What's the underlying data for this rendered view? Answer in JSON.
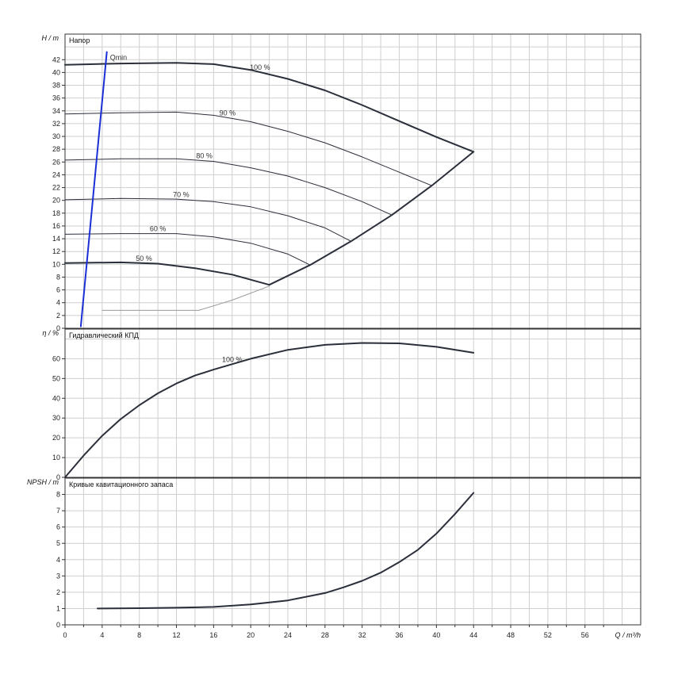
{
  "chart_data": [
    {
      "type": "line",
      "title": "Напор",
      "ylabel": "H / m",
      "xlim": [
        0,
        62
      ],
      "ylim": [
        0,
        46
      ],
      "yticks": [
        0,
        2,
        4,
        6,
        8,
        10,
        12,
        14,
        16,
        18,
        20,
        22,
        24,
        26,
        28,
        30,
        32,
        34,
        36,
        38,
        40,
        42
      ],
      "grid": true,
      "series": [
        {
          "name": "100 %",
          "x": [
            0,
            6,
            12,
            16,
            20,
            24,
            28,
            32,
            36,
            40,
            44
          ],
          "y": [
            41.2,
            41.4,
            41.5,
            41.3,
            40.4,
            39.0,
            37.2,
            34.9,
            32.4,
            29.9,
            27.6
          ],
          "weight": "bold"
        },
        {
          "name": "90 %",
          "x": [
            0,
            6,
            12,
            16,
            20,
            24,
            28,
            32,
            36,
            39.5
          ],
          "y": [
            33.5,
            33.7,
            33.8,
            33.3,
            32.3,
            30.8,
            29.0,
            26.8,
            24.4,
            22.3
          ],
          "weight": "thin"
        },
        {
          "name": "80 %",
          "x": [
            0,
            6,
            12,
            16,
            20,
            24,
            28,
            32,
            35.2
          ],
          "y": [
            26.3,
            26.5,
            26.5,
            26.1,
            25.1,
            23.8,
            22.0,
            19.8,
            17.7
          ],
          "weight": "thin"
        },
        {
          "name": "70 %",
          "x": [
            0,
            6,
            12,
            16,
            20,
            24,
            28,
            30.8
          ],
          "y": [
            20.1,
            20.3,
            20.2,
            19.8,
            19.0,
            17.6,
            15.7,
            13.6
          ],
          "weight": "thin"
        },
        {
          "name": "60 %",
          "x": [
            0,
            6,
            12,
            16,
            20,
            24,
            26.4
          ],
          "y": [
            14.7,
            14.8,
            14.8,
            14.3,
            13.3,
            11.6,
            9.9
          ],
          "weight": "thin"
        },
        {
          "name": "50 %",
          "x": [
            0,
            6,
            10,
            14,
            18,
            22
          ],
          "y": [
            10.2,
            10.3,
            10.1,
            9.4,
            8.4,
            6.8
          ],
          "weight": "bold"
        },
        {
          "name": "",
          "x": [
            22,
            26.4,
            30.8,
            35.2,
            39.5,
            44
          ],
          "y": [
            6.8,
            9.9,
            13.6,
            17.7,
            22.3,
            27.6
          ],
          "weight": "bold"
        },
        {
          "name": "",
          "x": [
            4,
            14.4,
            18,
            22
          ],
          "y": [
            2.8,
            2.8,
            4.4,
            6.6
          ],
          "weight": "faint"
        },
        {
          "name": "Qmin",
          "x": [
            1.7,
            4.5
          ],
          "y": [
            0.3,
            43.2
          ],
          "weight": "blue"
        }
      ]
    },
    {
      "type": "line",
      "title": "Гидравлический КПД",
      "ylabel": "η / %",
      "xlim": [
        0,
        62
      ],
      "ylim": [
        0,
        75
      ],
      "yticks": [
        0,
        10,
        20,
        30,
        40,
        50,
        60
      ],
      "grid": true,
      "series": [
        {
          "name": "100 %",
          "x": [
            0,
            2,
            4,
            6,
            8,
            10,
            12,
            14,
            16,
            20,
            24,
            28,
            32,
            36,
            40,
            44
          ],
          "y": [
            0,
            11,
            21,
            29.5,
            36.5,
            42.5,
            47.5,
            51.5,
            54.5,
            60,
            64.5,
            67,
            68,
            67.8,
            66,
            63
          ],
          "weight": "bold"
        }
      ]
    },
    {
      "type": "line",
      "title": "Кривые кавитационного запаса",
      "ylabel": "NPSH / m",
      "xlabel": "Q / m³/h",
      "xlim": [
        0,
        62
      ],
      "ylim": [
        0,
        9
      ],
      "xticks": [
        0,
        4,
        8,
        12,
        16,
        20,
        24,
        28,
        32,
        36,
        40,
        44,
        48,
        52,
        56
      ],
      "yticks": [
        0,
        1,
        2,
        3,
        4,
        5,
        6,
        7,
        8
      ],
      "grid": true,
      "series": [
        {
          "name": "",
          "x": [
            3.5,
            8,
            12,
            16,
            20,
            24,
            28,
            30,
            32,
            34,
            36,
            38,
            40,
            42,
            44
          ],
          "y": [
            1,
            1.02,
            1.05,
            1.1,
            1.25,
            1.5,
            1.95,
            2.3,
            2.7,
            3.2,
            3.85,
            4.6,
            5.6,
            6.8,
            8.1
          ],
          "weight": "bold"
        }
      ]
    }
  ]
}
